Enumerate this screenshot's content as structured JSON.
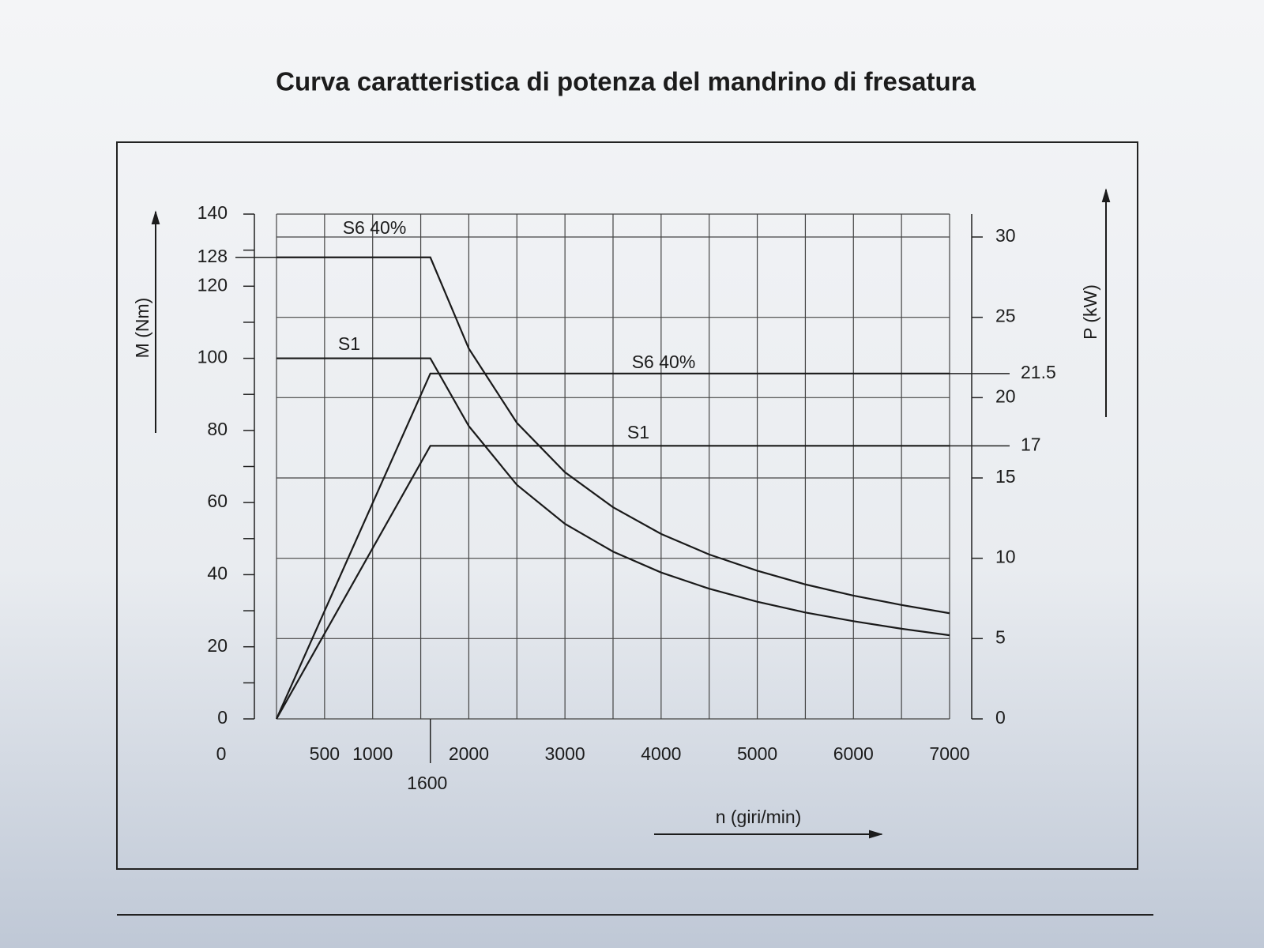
{
  "chart_data": {
    "type": "line",
    "title": "Curva caratteristica di potenza del mandrino di fresatura",
    "xlabel": "n (giri/min)",
    "ylabel": "M (Nm)",
    "y2label": "P (kW)",
    "xlim": [
      0,
      7000
    ],
    "xticks": [
      0,
      500,
      1000,
      1600,
      2000,
      3000,
      4000,
      5000,
      6000,
      7000
    ],
    "xgrid": [
      0,
      500,
      1000,
      1500,
      2000,
      2500,
      3000,
      3500,
      4000,
      4500,
      5000,
      5500,
      6000,
      6500,
      7000
    ],
    "ylim": [
      0,
      140
    ],
    "yticks": [
      0,
      20,
      40,
      60,
      80,
      100,
      120,
      128,
      140
    ],
    "yminor_ticks": [
      10,
      30,
      50,
      70,
      90,
      110,
      130
    ],
    "y2lim": [
      0,
      30
    ],
    "y2ticks": [
      0,
      5,
      10,
      15,
      17,
      20,
      21.5,
      25,
      30
    ],
    "y2grid": [
      0,
      5,
      10,
      15,
      20,
      25,
      30
    ],
    "grid": true,
    "series": [
      {
        "name": "S6 40%",
        "color": "#1a1a1a",
        "x": [
          0,
          1600,
          2000,
          2500,
          3000,
          3500,
          4000,
          4500,
          5000,
          5500,
          6000,
          6500,
          7000
        ],
        "values": [
          128,
          128,
          102.7,
          82.1,
          68.4,
          58.7,
          51.3,
          45.6,
          41.1,
          37.3,
          34.2,
          31.6,
          29.3
        ]
      },
      {
        "name": "S1",
        "color": "#1a1a1a",
        "x": [
          0,
          1600,
          2000,
          2500,
          3000,
          3500,
          4000,
          4500,
          5000,
          5500,
          6000,
          6500,
          7000
        ],
        "values": [
          100,
          100,
          81.2,
          64.9,
          54.1,
          46.4,
          40.6,
          36.1,
          32.5,
          29.5,
          27.1,
          25.0,
          23.2
        ]
      },
      {
        "name": "S6 40%",
        "color": "#1a1a1a",
        "axis": "y2",
        "x": [
          0,
          1600,
          7000
        ],
        "values": [
          0,
          21.5,
          21.5
        ]
      },
      {
        "name": "S1",
        "color": "#1a1a1a",
        "axis": "y2",
        "x": [
          0,
          1600,
          7000
        ],
        "values": [
          0,
          17,
          17
        ]
      }
    ]
  }
}
